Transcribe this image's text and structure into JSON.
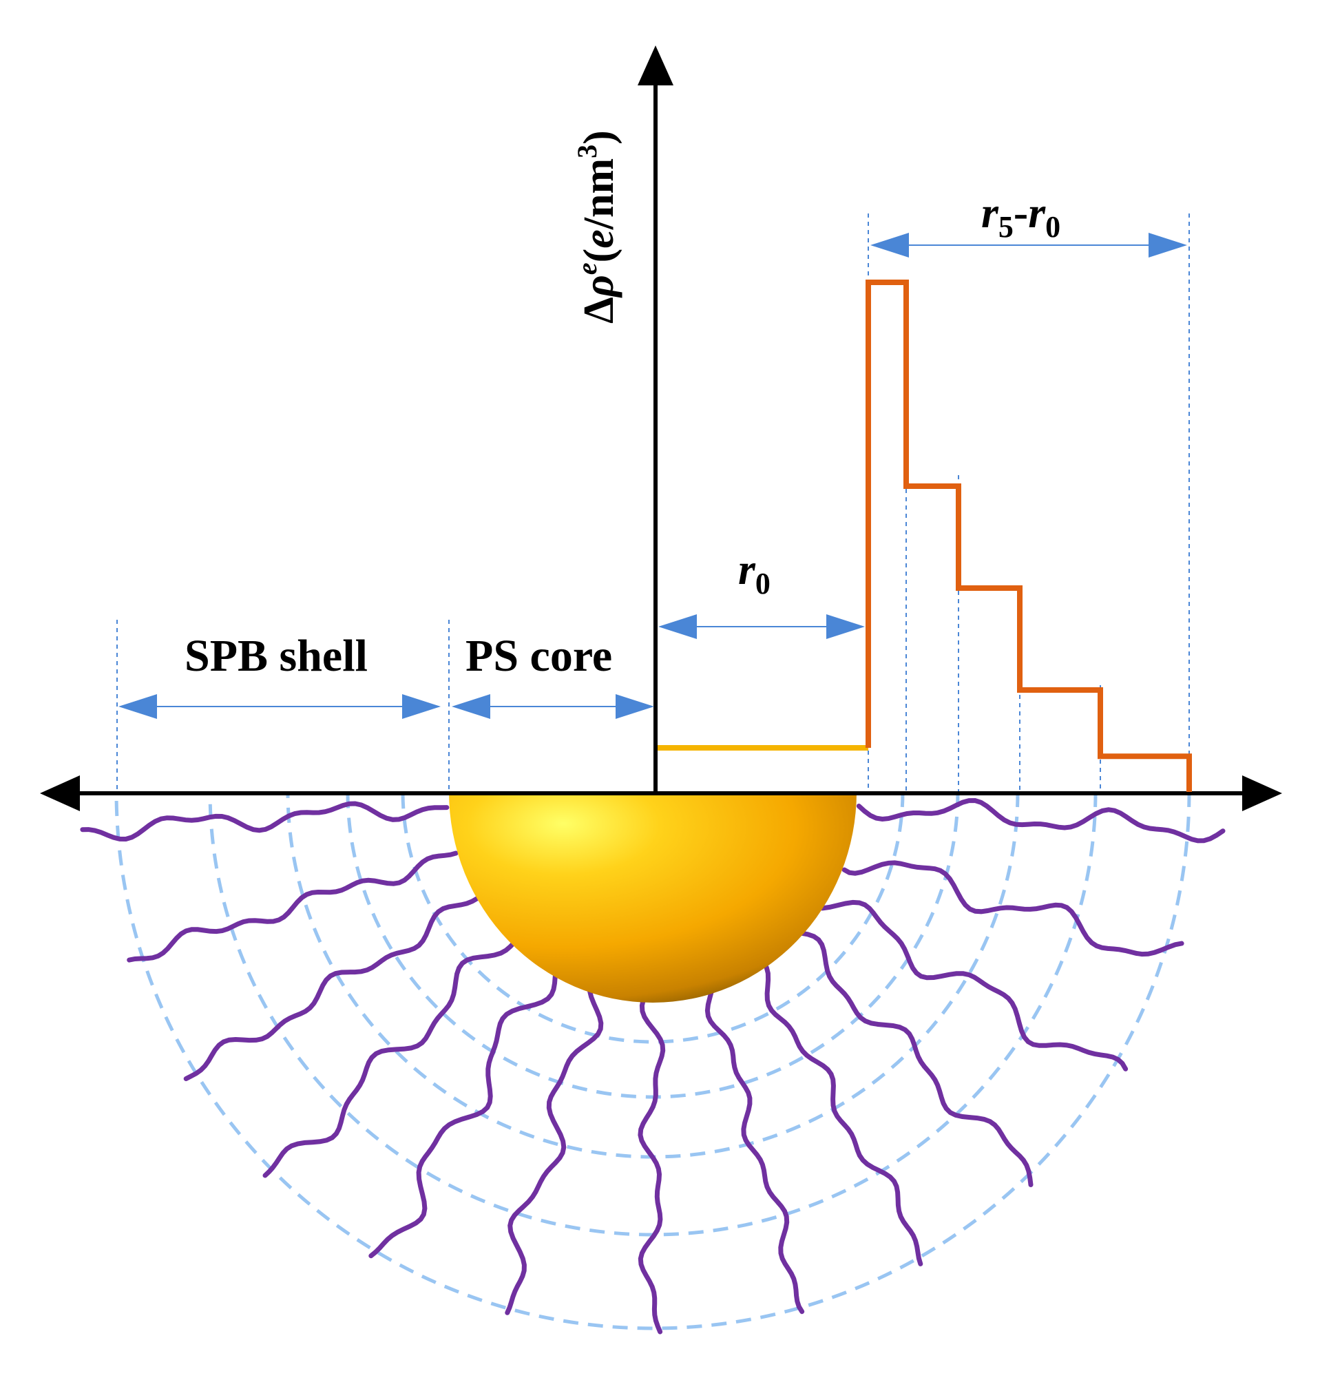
{
  "colors": {
    "axis": "#000000",
    "guide": "#4a86d6",
    "arrow_fill": "#4a86d6",
    "core_line": "#f5b400",
    "profile_line": "#e06010",
    "chains": "#7030a0",
    "shell_rings": "#99c5f2",
    "sphere_light": "#ffff5a",
    "sphere_mid": "#f5b000",
    "sphere_dark": "#6a4a00"
  },
  "labels": {
    "y_axis": {
      "delta": "Δ",
      "rho": "ρ",
      "sup_e": "e",
      "open": "(",
      "e_unit": "e",
      "unit": "/nm",
      "sup_3": "3",
      "close": ")"
    },
    "r0": {
      "main": "r",
      "sub": "0"
    },
    "r5_r0": {
      "main1": "r",
      "sub1": "5",
      "dash": "-",
      "main2": "r",
      "sub2": "0"
    },
    "spb_shell": "SPB shell",
    "ps_core": "PS core"
  },
  "profile": {
    "core_level": 1,
    "shell_levels": [
      10,
      6,
      4,
      2,
      0.7,
      0
    ]
  },
  "icons": {
    "sphere": "gold-hemisphere-icon",
    "chains": "polymer-brush-chain-icon",
    "rings": "dashed-shell-ring-icon"
  }
}
